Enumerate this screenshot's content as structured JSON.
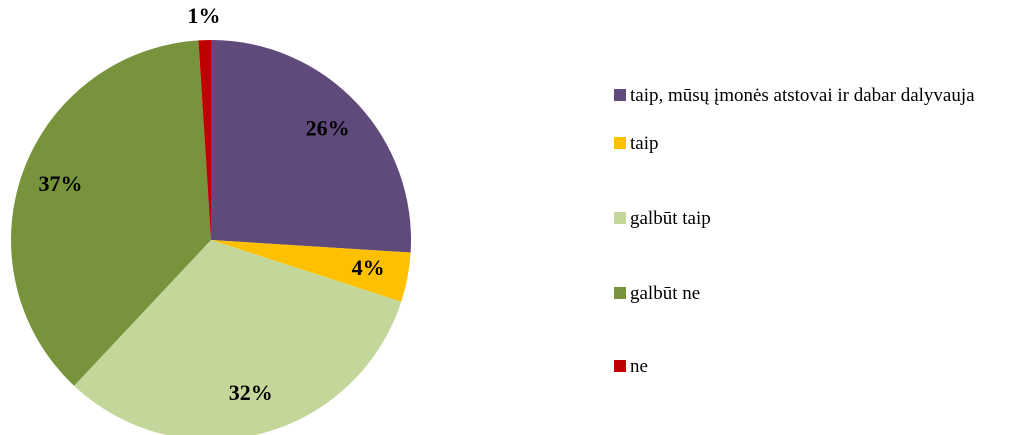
{
  "chart_data": {
    "type": "pie",
    "categories": [
      "taip, mūsų įmonės atstovai ir dabar dalyvauja",
      "taip",
      "galbūt taip",
      "galbūt ne",
      "ne"
    ],
    "values": [
      26,
      4,
      32,
      37,
      1
    ],
    "value_labels": [
      "26%",
      "4%",
      "32%",
      "37%",
      "1%"
    ],
    "colors": [
      "#604a7b",
      "#ffc000",
      "#c4d79b",
      "#77933c",
      "#c00000"
    ],
    "legend": "right"
  }
}
